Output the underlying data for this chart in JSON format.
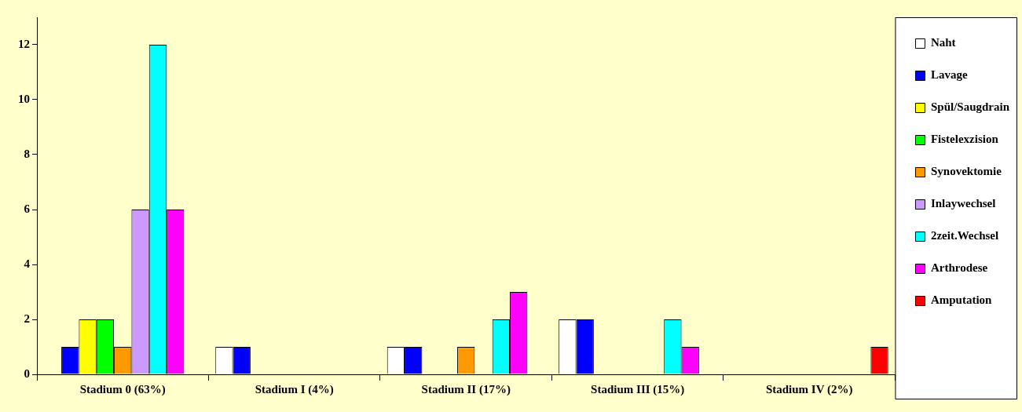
{
  "chart_data": {
    "type": "bar",
    "categories": [
      "Stadium 0 (63%)",
      "Stadium I (4%)",
      "Stadium II (17%)",
      "Stadium III (15%)",
      "Stadium IV (2%)"
    ],
    "series": [
      {
        "name": "Naht",
        "color": "#ffffff",
        "values": [
          0,
          1,
          1,
          2,
          0
        ]
      },
      {
        "name": "Lavage",
        "color": "#0000ff",
        "values": [
          1,
          1,
          1,
          2,
          0
        ]
      },
      {
        "name": "Spül/Saugdrain",
        "color": "#ffff00",
        "values": [
          2,
          0,
          0,
          0,
          0
        ]
      },
      {
        "name": "Fistelexzision",
        "color": "#00ff00",
        "values": [
          2,
          0,
          0,
          0,
          0
        ]
      },
      {
        "name": "Synovektomie",
        "color": "#ff9900",
        "values": [
          1,
          0,
          1,
          0,
          0
        ]
      },
      {
        "name": "Inlaywechsel",
        "color": "#cc99ff",
        "values": [
          6,
          0,
          0,
          0,
          0
        ]
      },
      {
        "name": "2zeit.Wechsel",
        "color": "#00ffff",
        "values": [
          12,
          0,
          2,
          2,
          0
        ]
      },
      {
        "name": "Arthrodese",
        "color": "#ff00ff",
        "values": [
          6,
          0,
          3,
          1,
          0
        ]
      },
      {
        "name": "Amputation",
        "color": "#ff0000",
        "values": [
          0,
          0,
          0,
          0,
          1
        ]
      }
    ],
    "ylim": [
      0,
      13
    ],
    "yticks": [
      0,
      2,
      4,
      6,
      8,
      10,
      12
    ],
    "grid": false,
    "legend": "right"
  }
}
